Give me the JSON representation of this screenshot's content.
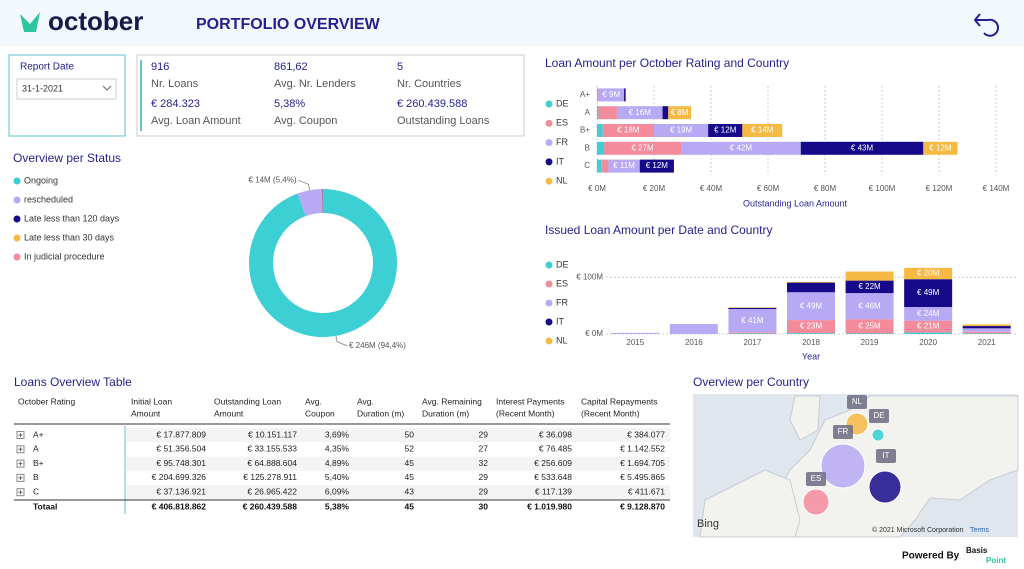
{
  "header": {
    "logo": "october",
    "title": "PORTFOLIO OVERVIEW"
  },
  "report_date": {
    "label": "Report Date",
    "value": "31-1-2021"
  },
  "kpis": [
    {
      "value": "916",
      "label": "Nr. Loans"
    },
    {
      "value": "861,62",
      "label": "Avg. Nr. Lenders"
    },
    {
      "value": "5",
      "label": "Nr. Countries"
    },
    {
      "value": "€ 284.323",
      "label": "Avg. Loan Amount"
    },
    {
      "value": "5,38%",
      "label": "Avg. Coupon"
    },
    {
      "value": "€ 260.439.588",
      "label": "Outstanding Loans"
    }
  ],
  "chart_data": [
    {
      "type": "pie",
      "title": "Overview per Status",
      "categories": [
        "Ongoing",
        "rescheduled",
        "Late less than 120 days",
        "Late less than 30 days",
        "In judicial procedure"
      ],
      "values": [
        94.4,
        5.4,
        0.1,
        0.05,
        0.05
      ],
      "value_labels": [
        "€ 246M (94,4%)",
        "€ 14M (5,4%)",
        null,
        null,
        null
      ],
      "colors": [
        "#3ccfd3",
        "#b8a9f5",
        "#170a8a",
        "#f6b944",
        "#f48b9b"
      ],
      "legend": "top-left"
    },
    {
      "type": "hbar_stacked",
      "title": "Loan Amount per October Rating and Country",
      "categories": [
        "A+",
        "A",
        "B+",
        "B",
        "C"
      ],
      "xlabel": "Outstanding Loan Amount",
      "xlim": [
        0,
        140
      ],
      "xticks": [
        {
          "value": 0,
          "label": "€ 0M"
        },
        {
          "value": 20,
          "label": "€ 20M"
        },
        {
          "value": 40,
          "label": "€ 40M"
        },
        {
          "value": 60,
          "label": "€ 60M"
        },
        {
          "value": 80,
          "label": "€ 80M"
        },
        {
          "value": 100,
          "label": "€ 100M"
        },
        {
          "value": 120,
          "label": "€ 120M"
        },
        {
          "value": 140,
          "label": "€ 140M"
        }
      ],
      "grid": true,
      "legend": "left",
      "series": [
        {
          "name": "DE",
          "color": "#3ccfd3",
          "values": [
            0.3,
            0.5,
            2,
            2.5,
            1.5
          ],
          "value_labels": [
            null,
            null,
            null,
            null,
            null
          ]
        },
        {
          "name": "ES",
          "color": "#f48b9b",
          "values": [
            0.2,
            6.5,
            18,
            27,
            2.5
          ],
          "value_labels": [
            null,
            null,
            "€ 18M",
            "€ 27M",
            null
          ]
        },
        {
          "name": "FR",
          "color": "#b8a9f5",
          "values": [
            9,
            16,
            19,
            42,
            11
          ],
          "value_labels": [
            "€ 9M",
            "€ 16M",
            "€ 19M",
            "€ 42M",
            "€ 11M"
          ]
        },
        {
          "name": "IT",
          "color": "#170a8a",
          "values": [
            0.5,
            2,
            12,
            43,
            12
          ],
          "value_labels": [
            null,
            null,
            "€ 12M",
            "€ 43M",
            "€ 12M"
          ]
        },
        {
          "name": "NL",
          "color": "#f6b944",
          "values": [
            0.2,
            8,
            14,
            12,
            0
          ],
          "value_labels": [
            null,
            "€ 8M",
            "€ 14M",
            "€ 12M",
            null
          ]
        }
      ]
    },
    {
      "type": "bar_stacked",
      "title": "Issued Loan Amount per Date and Country",
      "categories": [
        "2015",
        "2016",
        "2017",
        "2018",
        "2019",
        "2020",
        "2021"
      ],
      "xlabel": "Year",
      "ylim": [
        0,
        125
      ],
      "yticks": [
        {
          "value": 0,
          "label": "€ 0M"
        },
        {
          "value": 100,
          "label": "€ 100M"
        }
      ],
      "grid": true,
      "legend": "left",
      "series": [
        {
          "name": "DE",
          "color": "#3ccfd3",
          "values": [
            0,
            0.5,
            1,
            1.5,
            1,
            2.5,
            1
          ],
          "value_labels": [
            null,
            null,
            null,
            null,
            null,
            null,
            null
          ]
        },
        {
          "name": "ES",
          "color": "#f48b9b",
          "values": [
            0,
            0,
            2,
            23,
            25,
            21,
            3
          ],
          "value_labels": [
            null,
            null,
            null,
            "€ 23M",
            "€ 25M",
            "€ 21M",
            null
          ]
        },
        {
          "name": "FR",
          "color": "#b8a9f5",
          "values": [
            2,
            17,
            41,
            49,
            46,
            24,
            6
          ],
          "value_labels": [
            null,
            null,
            "€ 41M",
            "€ 49M",
            "€ 46M",
            "€ 24M",
            null
          ]
        },
        {
          "name": "IT",
          "color": "#170a8a",
          "values": [
            0,
            0,
            2,
            17,
            22,
            49,
            4
          ],
          "value_labels": [
            null,
            null,
            null,
            null,
            "€ 22M",
            "€ 49M",
            null
          ]
        },
        {
          "name": "NL",
          "color": "#f6b944",
          "values": [
            0,
            0,
            1,
            1,
            16,
            20,
            3
          ],
          "value_labels": [
            null,
            null,
            null,
            null,
            null,
            "€ 20M",
            null
          ]
        }
      ]
    }
  ],
  "table": {
    "title": "Loans Overview Table",
    "headers": [
      [
        "October Rating"
      ],
      [
        "Initial Loan",
        "Amount"
      ],
      [
        "Outstanding Loan",
        "Amount"
      ],
      [
        "Avg.",
        "Coupon"
      ],
      [
        "Avg.",
        "Duration (m)"
      ],
      [
        "Avg. Remaining",
        "Duration (m)"
      ],
      [
        "Interest Payments",
        "(Recent Month)"
      ],
      [
        "Capital Repayments",
        "(Recent Month)"
      ]
    ],
    "rows": [
      [
        "A+",
        "€ 17.877.809",
        "€ 10.151.117",
        "3,69%",
        "50",
        "29",
        "€ 36.098",
        "€ 384.077"
      ],
      [
        "A",
        "€ 51.356.504",
        "€ 33.155.533",
        "4,35%",
        "52",
        "27",
        "€ 76.485",
        "€ 1.142.552"
      ],
      [
        "B+",
        "€ 95.748.301",
        "€ 64.888.604",
        "4,89%",
        "45",
        "32",
        "€ 256.609",
        "€ 1.694.705"
      ],
      [
        "B",
        "€ 204.699.326",
        "€ 125.278.911",
        "5,40%",
        "45",
        "29",
        "€ 533.648",
        "€ 5.495.865"
      ],
      [
        "C",
        "€ 37.136.921",
        "€ 26.965.422",
        "6,09%",
        "43",
        "29",
        "€ 117.139",
        "€ 411.671"
      ]
    ],
    "total": [
      "Totaal",
      "€ 406.818.862",
      "€ 260.439.588",
      "5,38%",
      "45",
      "30",
      "€ 1.019.980",
      "€ 9.128.870"
    ]
  },
  "map": {
    "title": "Overview per Country",
    "labels": [
      "NL",
      "DE",
      "FR",
      "IT",
      "ES"
    ],
    "provider": "Bing",
    "copyright": "© 2021 Microsoft Corporation",
    "terms": "Terms"
  },
  "footer": {
    "powered_by": "Powered By",
    "brand_top": "Basis",
    "brand_bottom": "Point"
  }
}
